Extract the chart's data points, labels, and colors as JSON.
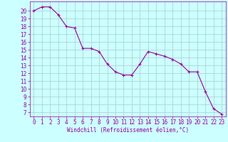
{
  "x": [
    0,
    1,
    2,
    3,
    4,
    5,
    6,
    7,
    8,
    9,
    10,
    11,
    12,
    13,
    14,
    15,
    16,
    17,
    18,
    19,
    20,
    21,
    22,
    23
  ],
  "y": [
    20,
    20.5,
    20.5,
    19.5,
    18,
    17.8,
    15.2,
    15.2,
    14.8,
    13.2,
    12.2,
    11.8,
    11.8,
    13.2,
    14.8,
    14.5,
    14.2,
    13.8,
    13.2,
    12.2,
    12.2,
    9.7,
    7.5,
    6.8
  ],
  "line_color": "#990099",
  "marker": "+",
  "marker_size": 3,
  "bg_color": "#ccffff",
  "grid_color": "#aacccc",
  "xlabel": "Windchill (Refroidissement éolien,°C)",
  "xlabel_color": "#990099",
  "tick_color": "#990099",
  "ylim": [
    6.5,
    21.2
  ],
  "xlim": [
    -0.5,
    23.5
  ],
  "yticks": [
    7,
    8,
    9,
    10,
    11,
    12,
    13,
    14,
    15,
    16,
    17,
    18,
    19,
    20
  ],
  "xticks": [
    0,
    1,
    2,
    3,
    4,
    5,
    6,
    7,
    8,
    9,
    10,
    11,
    12,
    13,
    14,
    15,
    16,
    17,
    18,
    19,
    20,
    21,
    22,
    23
  ],
  "font_size": 5.5
}
